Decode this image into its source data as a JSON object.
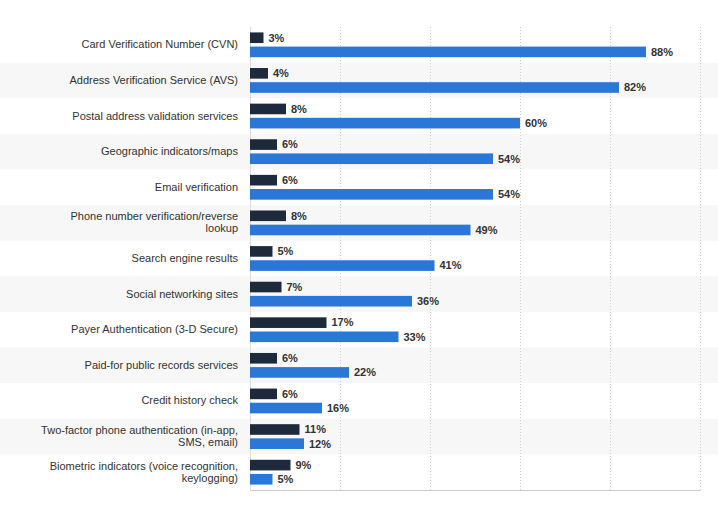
{
  "chart_data": {
    "type": "bar",
    "orientation": "horizontal",
    "categories": [
      "Card Verification Number (CVN)",
      "Address Verification Service (AVS)",
      "Postal address validation services",
      "Geographic indicators/maps",
      "Email verification",
      "Phone number verification/reverse lookup",
      "Search engine results",
      "Social networking sites",
      "Payer Authentication (3-D Secure)",
      "Paid-for public records services",
      "Credit history check",
      "Two-factor phone authentication (in-app, SMS, email)",
      "Biometric indicators (voice recognition, keylogging)"
    ],
    "series": [
      {
        "color": "#1c2a3b",
        "values": [
          3,
          4,
          8,
          6,
          6,
          8,
          5,
          7,
          17,
          6,
          6,
          11,
          9
        ],
        "value_labels": [
          "3%",
          "4%",
          "8%",
          "6%",
          "6%",
          "8%",
          "5%",
          "7%",
          "17%",
          "6%",
          "6%",
          "11%",
          "9%"
        ]
      },
      {
        "color": "#2a77d8",
        "values": [
          88,
          82,
          60,
          54,
          54,
          49,
          41,
          36,
          33,
          22,
          16,
          12,
          5
        ],
        "value_labels": [
          "88%",
          "82%",
          "60%",
          "54%",
          "54%",
          "49%",
          "41%",
          "36%",
          "33%",
          "22%",
          "16%",
          "12%",
          "5%"
        ]
      }
    ],
    "xlim": [
      0,
      100
    ],
    "xticks": [
      0,
      20,
      40,
      60,
      80,
      100
    ],
    "grid": true,
    "data_labels": true,
    "tick_labels": "y"
  }
}
